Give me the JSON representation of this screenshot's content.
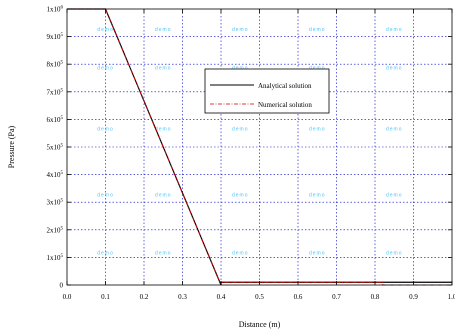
{
  "chart_data": {
    "type": "line",
    "title": "",
    "xlabel": "Distance (m)",
    "ylabel": "Pressure (Pa)",
    "xlim": [
      0,
      1.0
    ],
    "ylim": [
      0,
      1000000
    ],
    "grid": true,
    "legend_position": "center-right",
    "x_ticks": [
      {
        "value": 0.0,
        "label": "0.0"
      },
      {
        "value": 0.1,
        "label": "0.1"
      },
      {
        "value": 0.2,
        "label": "0.2"
      },
      {
        "value": 0.3,
        "label": "0.3"
      },
      {
        "value": 0.4,
        "label": "0.4"
      },
      {
        "value": 0.5,
        "label": "0.5"
      },
      {
        "value": 0.6,
        "label": "0.6"
      },
      {
        "value": 0.7,
        "label": "0.7"
      },
      {
        "value": 0.8,
        "label": "0.8"
      },
      {
        "value": 0.9,
        "label": "0.9"
      },
      {
        "value": 1.0,
        "label": "1.0"
      }
    ],
    "y_ticks": [
      {
        "value": 0,
        "mant": "0",
        "exp": ""
      },
      {
        "value": 100000,
        "mant": "1x10",
        "exp": "5"
      },
      {
        "value": 200000,
        "mant": "2x10",
        "exp": "5"
      },
      {
        "value": 300000,
        "mant": "3x10",
        "exp": "5"
      },
      {
        "value": 400000,
        "mant": "4x10",
        "exp": "5"
      },
      {
        "value": 500000,
        "mant": "5x10",
        "exp": "5"
      },
      {
        "value": 600000,
        "mant": "6x10",
        "exp": "5"
      },
      {
        "value": 700000,
        "mant": "7x10",
        "exp": "5"
      },
      {
        "value": 800000,
        "mant": "8x10",
        "exp": "5"
      },
      {
        "value": 900000,
        "mant": "9x10",
        "exp": "5"
      },
      {
        "value": 1000000,
        "mant": "1x10",
        "exp": "6"
      }
    ],
    "series": [
      {
        "name": "Analytical solution",
        "color": "#000000",
        "style": "solid",
        "x": [
          0.0,
          0.1,
          0.4,
          0.4,
          1.0
        ],
        "y": [
          1000000,
          1000000,
          0,
          10000,
          10000
        ]
      },
      {
        "name": "Numerical solution",
        "color": "#cc0000",
        "style": "dash-dot",
        "x": [
          0.0,
          0.1,
          0.4,
          0.4,
          0.82,
          0.82,
          1.0
        ],
        "y": [
          1000000,
          1000000,
          0,
          10000,
          10000,
          0,
          0
        ]
      }
    ],
    "watermark_text": "demo"
  }
}
